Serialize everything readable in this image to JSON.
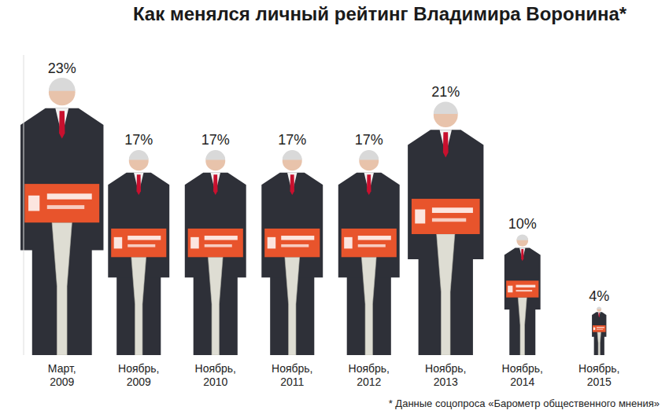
{
  "chart_data": {
    "type": "bar",
    "title": "Как менялся личный рейтинг Владимира Воронина*",
    "categories": [
      "Март, 2009",
      "Ноябрь, 2009",
      "Ноябрь, 2010",
      "Ноябрь, 2011",
      "Ноябрь, 2012",
      "Ноябрь, 2013",
      "Ноябрь, 2014",
      "Ноябрь, 2015"
    ],
    "values": [
      23,
      17,
      17,
      17,
      17,
      21,
      10,
      4
    ],
    "value_labels": [
      "23%",
      "17%",
      "17%",
      "17%",
      "17%",
      "21%",
      "10%",
      "4%"
    ],
    "data_labels": true,
    "color": "#2e3038",
    "ylim": [
      0,
      25
    ],
    "tick_labels": "x",
    "grid": false,
    "annotations": [
      "* Данные соцопроса «Барометр общественного мнения»"
    ]
  }
}
